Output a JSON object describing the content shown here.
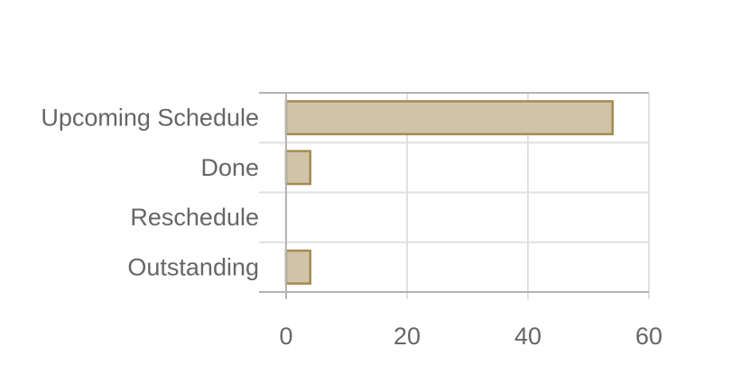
{
  "chart_data": {
    "type": "bar",
    "orientation": "horizontal",
    "title": "",
    "xlabel": "",
    "ylabel": "",
    "categories": [
      "Upcoming Schedule",
      "Done",
      "Reschedule",
      "Outstanding"
    ],
    "values": [
      54,
      4,
      0,
      4
    ],
    "xlim": [
      0,
      60
    ],
    "xticks": [
      "0",
      "20",
      "40",
      "60"
    ],
    "grid": true,
    "legend": "none",
    "colors": {
      "bar_fill": "#d1c3a8",
      "bar_stroke": "#a58b50",
      "grid": "#e0e0e0",
      "axis": "#b3b3b3",
      "text": "#666666"
    }
  }
}
